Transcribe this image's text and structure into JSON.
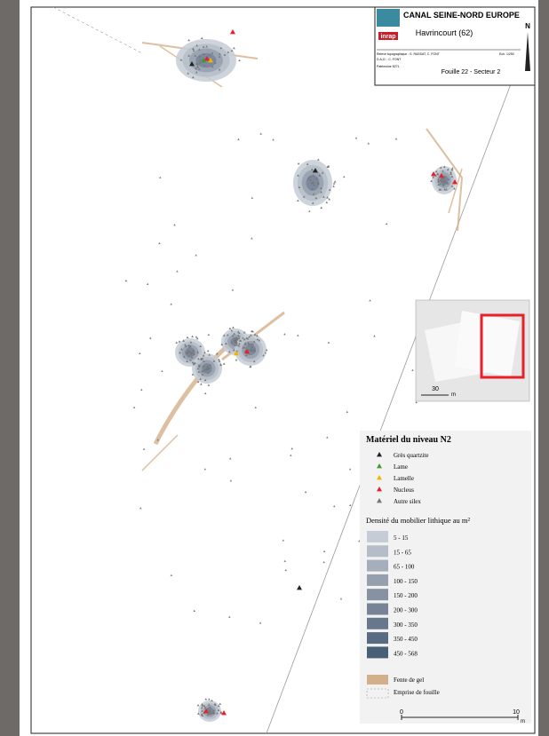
{
  "title_block": {
    "project": "CANAL SEINE-NORD EUROPE",
    "place": "Havrincourt (62)",
    "org": "inrap",
    "north": "N",
    "lines": [
      "Relevé topographique : S. RASSAT, C. FONT",
      "D.A.O. : C. FONT",
      "Patrimoine 5271"
    ],
    "scale": "Ech. 1/250",
    "site": "Fouille 22 - Secteur 2"
  },
  "inset": {
    "scale_label": "30",
    "unit": "m"
  },
  "legend": {
    "title": "Matériel du niveau N2",
    "items": [
      {
        "name": "Grès quartzite",
        "color": "#222222"
      },
      {
        "name": "Lame",
        "color": "#3c9a3c"
      },
      {
        "name": "Lamelle",
        "color": "#f0b400"
      },
      {
        "name": "Nucleus",
        "color": "#e8202a"
      },
      {
        "name": "Autre silex",
        "color": "#777777"
      }
    ],
    "density_title": "Densité du mobilier lithique au m²",
    "density_classes": [
      {
        "name": "5 - 15",
        "color": "#c6ccd5"
      },
      {
        "name": "15 - 65",
        "color": "#b5bdc8"
      },
      {
        "name": "65 - 100",
        "color": "#a5aebb"
      },
      {
        "name": "100 - 150",
        "color": "#959fae"
      },
      {
        "name": "150 - 200",
        "color": "#8691a2"
      },
      {
        "name": "200 - 300",
        "color": "#778497"
      },
      {
        "name": "300 - 350",
        "color": "#67778c"
      },
      {
        "name": "350 - 450",
        "color": "#586b82"
      },
      {
        "name": "450 - 568",
        "color": "#485f78"
      }
    ],
    "frost": "Fente de gel",
    "frost_color": "#d4b08a",
    "limit": "Emprise de fouille"
  },
  "scalebar": {
    "start": "0",
    "end": "10",
    "unit": "m"
  }
}
